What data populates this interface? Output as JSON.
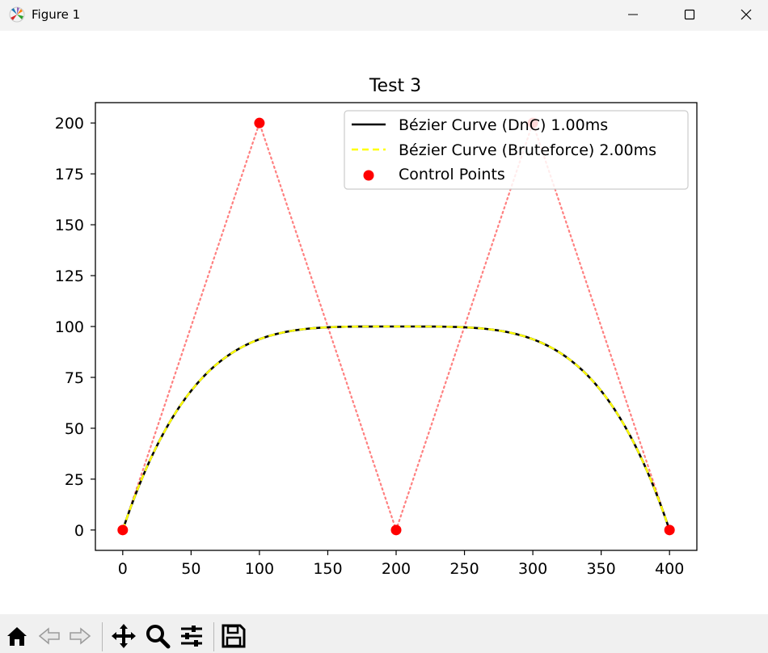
{
  "window": {
    "title": "Figure 1"
  },
  "chart_data": {
    "type": "line",
    "title": "Test 3",
    "xlabel": "",
    "ylabel": "",
    "xlim": [
      -20,
      420
    ],
    "ylim": [
      -10,
      210
    ],
    "xticks": [
      0,
      50,
      100,
      150,
      200,
      250,
      300,
      350,
      400
    ],
    "yticks": [
      0,
      25,
      50,
      75,
      100,
      125,
      150,
      175,
      200
    ],
    "grid": false,
    "legend_position": "top-right",
    "control_points": [
      [
        0,
        0
      ],
      [
        100,
        200
      ],
      [
        200,
        0
      ],
      [
        300,
        200
      ],
      [
        400,
        0
      ]
    ],
    "series": [
      {
        "name": "Bézier Curve (DnC) 1.00ms",
        "color": "#000000",
        "style": "solid",
        "kind": "bezier"
      },
      {
        "name": "Bézier Curve (Bruteforce) 2.00ms",
        "color": "#ffff00",
        "style": "dashed",
        "kind": "bezier"
      },
      {
        "name": "Control Points",
        "color": "#ff0000",
        "style": "scatter",
        "kind": "points"
      }
    ],
    "control_polygon": {
      "color": "#ff8080",
      "style": "dotted"
    }
  },
  "toolbar": {
    "items": [
      "home-icon",
      "back-icon",
      "forward-icon",
      "pan-icon",
      "zoom-icon",
      "configure-icon",
      "save-icon"
    ]
  }
}
